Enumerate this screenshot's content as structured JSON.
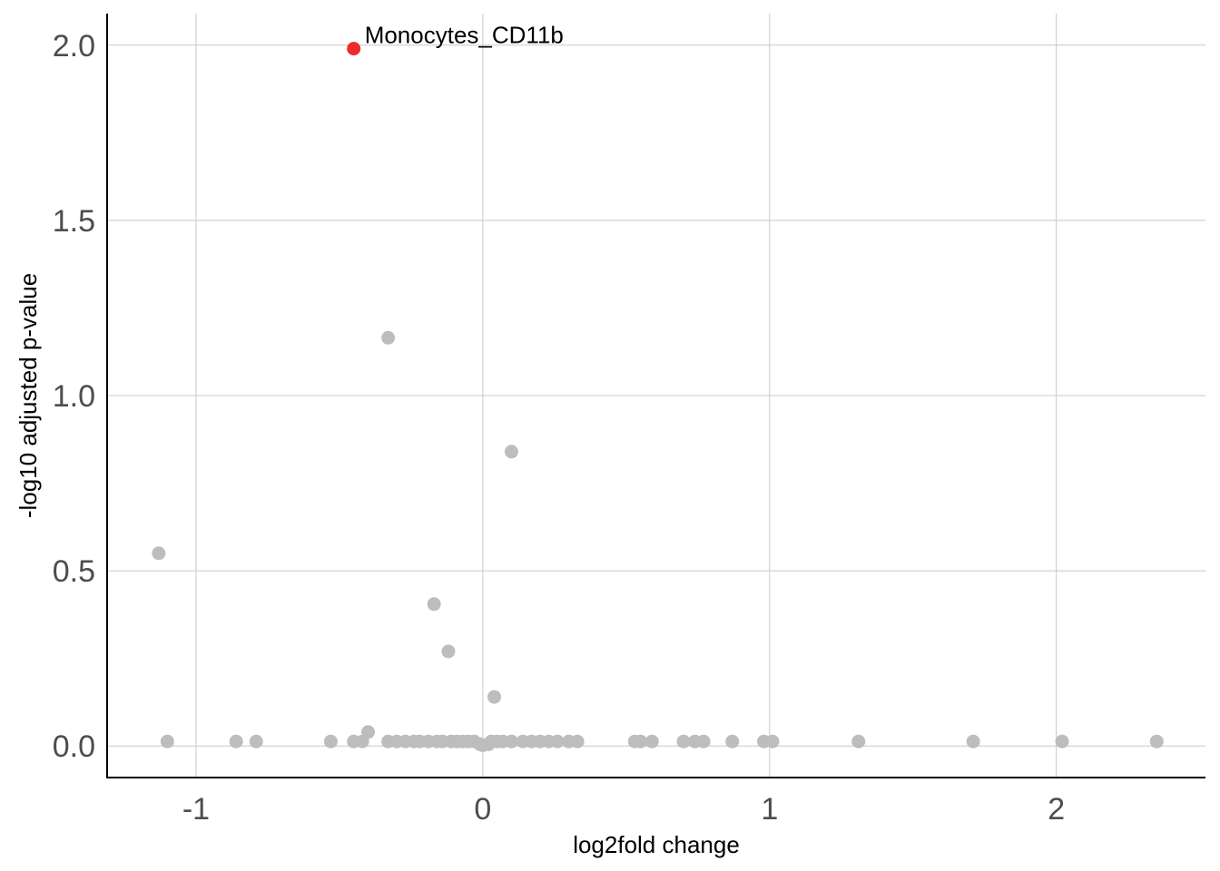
{
  "chart_data": {
    "type": "scatter",
    "xlabel": "log2fold change",
    "ylabel": "-log10 adjusted p-value",
    "xlim": [
      -1.31,
      2.52
    ],
    "ylim": [
      -0.09,
      2.09
    ],
    "xticks": [
      -1,
      0,
      1,
      2
    ],
    "yticks": [
      0.0,
      0.5,
      1.0,
      1.5,
      2.0
    ],
    "xtick_labels": [
      "-1",
      "0",
      "1",
      "2"
    ],
    "ytick_labels": [
      "0.0",
      "0.5",
      "1.0",
      "1.5",
      "2.0"
    ],
    "grid": true,
    "colors": {
      "highlight": "#ee2a2a",
      "other": "#bdbdbd",
      "grid": "#c8c8c8",
      "tick_text": "#4d4d4d"
    },
    "highlight": {
      "label": "Monocytes_CD11b",
      "x": -0.45,
      "y": 1.99
    },
    "points": [
      {
        "x": -1.13,
        "y": 0.55
      },
      {
        "x": -1.1,
        "y": 0.013
      },
      {
        "x": -0.86,
        "y": 0.013
      },
      {
        "x": -0.79,
        "y": 0.013
      },
      {
        "x": -0.53,
        "y": 0.013
      },
      {
        "x": -0.45,
        "y": 0.013
      },
      {
        "x": -0.42,
        "y": 0.013
      },
      {
        "x": -0.4,
        "y": 0.04
      },
      {
        "x": -0.33,
        "y": 1.165
      },
      {
        "x": -0.33,
        "y": 0.013
      },
      {
        "x": -0.3,
        "y": 0.013
      },
      {
        "x": -0.27,
        "y": 0.013
      },
      {
        "x": -0.24,
        "y": 0.013
      },
      {
        "x": -0.22,
        "y": 0.013
      },
      {
        "x": -0.19,
        "y": 0.013
      },
      {
        "x": -0.17,
        "y": 0.405
      },
      {
        "x": -0.16,
        "y": 0.013
      },
      {
        "x": -0.14,
        "y": 0.013
      },
      {
        "x": -0.12,
        "y": 0.27
      },
      {
        "x": -0.11,
        "y": 0.013
      },
      {
        "x": -0.09,
        "y": 0.013
      },
      {
        "x": -0.07,
        "y": 0.013
      },
      {
        "x": -0.05,
        "y": 0.013
      },
      {
        "x": -0.03,
        "y": 0.013
      },
      {
        "x": -0.01,
        "y": 0.005
      },
      {
        "x": 0.0,
        "y": 0.002
      },
      {
        "x": 0.02,
        "y": 0.005
      },
      {
        "x": 0.03,
        "y": 0.013
      },
      {
        "x": 0.04,
        "y": 0.14
      },
      {
        "x": 0.05,
        "y": 0.013
      },
      {
        "x": 0.07,
        "y": 0.013
      },
      {
        "x": 0.1,
        "y": 0.84
      },
      {
        "x": 0.1,
        "y": 0.013
      },
      {
        "x": 0.14,
        "y": 0.013
      },
      {
        "x": 0.17,
        "y": 0.013
      },
      {
        "x": 0.2,
        "y": 0.013
      },
      {
        "x": 0.23,
        "y": 0.013
      },
      {
        "x": 0.26,
        "y": 0.013
      },
      {
        "x": 0.3,
        "y": 0.013
      },
      {
        "x": 0.33,
        "y": 0.013
      },
      {
        "x": 0.53,
        "y": 0.013
      },
      {
        "x": 0.55,
        "y": 0.013
      },
      {
        "x": 0.59,
        "y": 0.013
      },
      {
        "x": 0.7,
        "y": 0.013
      },
      {
        "x": 0.74,
        "y": 0.013
      },
      {
        "x": 0.77,
        "y": 0.013
      },
      {
        "x": 0.87,
        "y": 0.013
      },
      {
        "x": 0.98,
        "y": 0.013
      },
      {
        "x": 1.01,
        "y": 0.013
      },
      {
        "x": 1.31,
        "y": 0.013
      },
      {
        "x": 1.71,
        "y": 0.013
      },
      {
        "x": 2.02,
        "y": 0.013
      },
      {
        "x": 2.35,
        "y": 0.013
      }
    ]
  }
}
